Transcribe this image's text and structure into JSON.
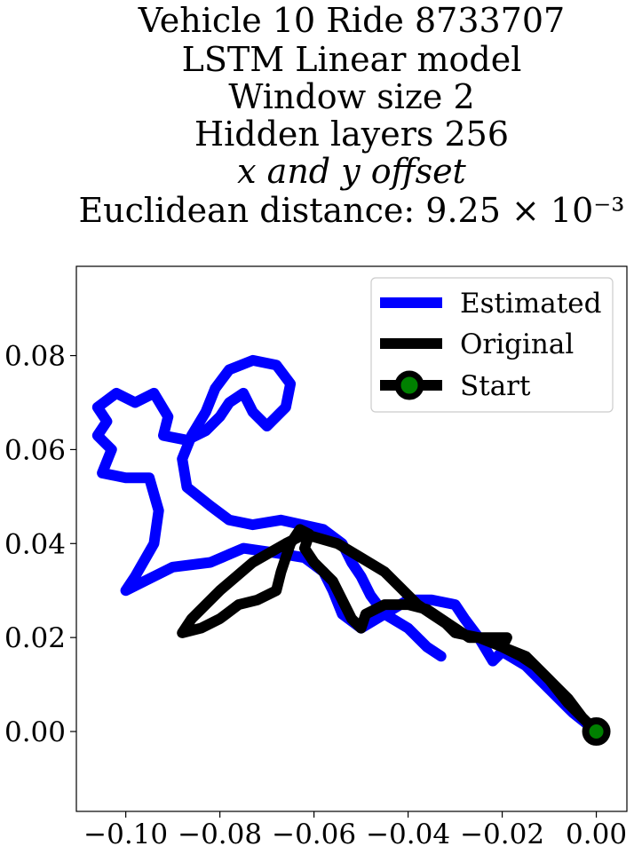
{
  "chart_data": {
    "type": "line",
    "title_lines": [
      "Vehicle 10 Ride 8733707",
      "LSTM Linear model",
      "Window size 2",
      "Hidden layers 256",
      "x and y offset",
      "Euclidean distance: 9.25 × 10⁻³"
    ],
    "xlim": [
      -0.1105,
      0.0065
    ],
    "ylim": [
      -0.017,
      0.099
    ],
    "x_ticks": [
      -0.1,
      -0.08,
      -0.06,
      -0.04,
      -0.02,
      0.0
    ],
    "x_tick_labels": [
      "−0.10",
      "−0.08",
      "−0.06",
      "−0.04",
      "−0.02",
      "0.00"
    ],
    "y_ticks": [
      0.0,
      0.02,
      0.04,
      0.06,
      0.08
    ],
    "y_tick_labels": [
      "0.00",
      "0.02",
      "0.04",
      "0.06",
      "0.08"
    ],
    "grid": false,
    "legend_position": "top-right",
    "series": [
      {
        "name": "Estimated",
        "color": "#0000ff",
        "points": [
          [
            0.0,
            0.0
          ],
          [
            -0.005,
            0.004
          ],
          [
            -0.01,
            0.009
          ],
          [
            -0.015,
            0.014
          ],
          [
            -0.02,
            0.017
          ],
          [
            -0.022,
            0.015
          ],
          [
            -0.025,
            0.02
          ],
          [
            -0.028,
            0.024
          ],
          [
            -0.03,
            0.027
          ],
          [
            -0.035,
            0.028
          ],
          [
            -0.04,
            0.028
          ],
          [
            -0.045,
            0.025
          ],
          [
            -0.05,
            0.022
          ],
          [
            -0.054,
            0.025
          ],
          [
            -0.056,
            0.03
          ],
          [
            -0.058,
            0.034
          ],
          [
            -0.062,
            0.037
          ],
          [
            -0.068,
            0.038
          ],
          [
            -0.075,
            0.039
          ],
          [
            -0.082,
            0.036
          ],
          [
            -0.09,
            0.035
          ],
          [
            -0.096,
            0.032
          ],
          [
            -0.1,
            0.03
          ],
          [
            -0.098,
            0.033
          ],
          [
            -0.094,
            0.04
          ],
          [
            -0.093,
            0.047
          ],
          [
            -0.095,
            0.054
          ],
          [
            -0.1,
            0.054
          ],
          [
            -0.105,
            0.055
          ],
          [
            -0.103,
            0.06
          ],
          [
            -0.106,
            0.063
          ],
          [
            -0.104,
            0.066
          ],
          [
            -0.106,
            0.069
          ],
          [
            -0.102,
            0.072
          ],
          [
            -0.098,
            0.07
          ],
          [
            -0.094,
            0.072
          ],
          [
            -0.091,
            0.067
          ],
          [
            -0.092,
            0.063
          ],
          [
            -0.087,
            0.062
          ],
          [
            -0.083,
            0.064
          ],
          [
            -0.08,
            0.067
          ],
          [
            -0.078,
            0.07
          ],
          [
            -0.075,
            0.072
          ],
          [
            -0.073,
            0.068
          ],
          [
            -0.07,
            0.065
          ],
          [
            -0.066,
            0.069
          ],
          [
            -0.065,
            0.074
          ],
          [
            -0.068,
            0.078
          ],
          [
            -0.073,
            0.079
          ],
          [
            -0.078,
            0.077
          ],
          [
            -0.081,
            0.073
          ],
          [
            -0.083,
            0.068
          ],
          [
            -0.086,
            0.063
          ],
          [
            -0.088,
            0.058
          ],
          [
            -0.087,
            0.052
          ],
          [
            -0.082,
            0.048
          ],
          [
            -0.078,
            0.045
          ],
          [
            -0.073,
            0.044
          ],
          [
            -0.067,
            0.045
          ],
          [
            -0.058,
            0.043
          ],
          [
            -0.054,
            0.04
          ],
          [
            -0.052,
            0.036
          ],
          [
            -0.05,
            0.033
          ],
          [
            -0.048,
            0.029
          ],
          [
            -0.045,
            0.025
          ],
          [
            -0.04,
            0.022
          ],
          [
            -0.036,
            0.018
          ],
          [
            -0.033,
            0.016
          ]
        ]
      },
      {
        "name": "Original",
        "color": "#000000",
        "points": [
          [
            0.0,
            0.0
          ],
          [
            -0.003,
            0.003
          ],
          [
            -0.006,
            0.007
          ],
          [
            -0.01,
            0.011
          ],
          [
            -0.013,
            0.014
          ],
          [
            -0.016,
            0.016
          ],
          [
            -0.02,
            0.018
          ],
          [
            -0.019,
            0.02
          ],
          [
            -0.022,
            0.02
          ],
          [
            -0.027,
            0.02
          ],
          [
            -0.03,
            0.022
          ],
          [
            -0.033,
            0.024
          ],
          [
            -0.036,
            0.026
          ],
          [
            -0.04,
            0.027
          ],
          [
            -0.045,
            0.027
          ],
          [
            -0.049,
            0.025
          ],
          [
            -0.05,
            0.022
          ],
          [
            -0.052,
            0.024
          ],
          [
            -0.054,
            0.028
          ],
          [
            -0.056,
            0.032
          ],
          [
            -0.06,
            0.036
          ],
          [
            -0.062,
            0.039
          ],
          [
            -0.061,
            0.042
          ],
          [
            -0.063,
            0.043
          ],
          [
            -0.065,
            0.04
          ],
          [
            -0.067,
            0.034
          ],
          [
            -0.068,
            0.03
          ],
          [
            -0.072,
            0.028
          ],
          [
            -0.076,
            0.027
          ],
          [
            -0.08,
            0.024
          ],
          [
            -0.084,
            0.022
          ],
          [
            -0.088,
            0.021
          ],
          [
            -0.086,
            0.024
          ],
          [
            -0.08,
            0.03
          ],
          [
            -0.073,
            0.036
          ],
          [
            -0.066,
            0.04
          ],
          [
            -0.062,
            0.042
          ],
          [
            -0.055,
            0.04
          ],
          [
            -0.05,
            0.037
          ],
          [
            -0.045,
            0.034
          ],
          [
            -0.041,
            0.03
          ],
          [
            -0.038,
            0.027
          ],
          [
            -0.035,
            0.025
          ],
          [
            -0.032,
            0.023
          ],
          [
            -0.03,
            0.021
          ],
          [
            -0.025,
            0.02
          ],
          [
            -0.02,
            0.018
          ],
          [
            -0.015,
            0.016
          ],
          [
            -0.01,
            0.011
          ],
          [
            -0.006,
            0.006
          ],
          [
            -0.003,
            0.003
          ]
        ]
      }
    ],
    "start_marker": {
      "name": "Start",
      "point": [
        0.0,
        0.0
      ],
      "edge_color": "#000000",
      "face_color": "#008000"
    }
  }
}
